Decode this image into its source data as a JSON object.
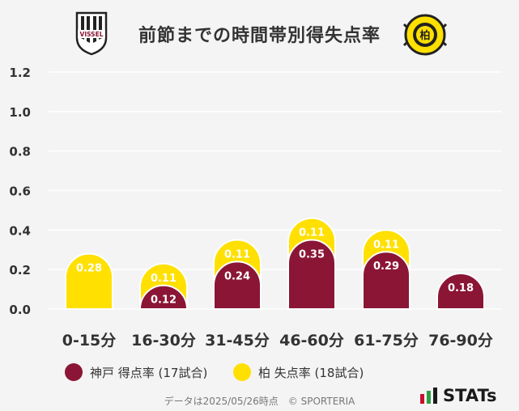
{
  "title": "前節までの時間帯別得失点率",
  "logos": {
    "left": {
      "text": "VISSEL",
      "icon": "vissel-kobe-crest-icon"
    },
    "right": {
      "text": "KASHIWA REYSOL",
      "icon": "kashiwa-reysol-crest-icon"
    }
  },
  "colors": {
    "kobe": "#8b1535",
    "kashiwa": "#ffe000",
    "grid": "#ffffff",
    "text": "#333333"
  },
  "chart_data": {
    "type": "bar",
    "title": "前節までの時間帯別得失点率",
    "categories": [
      "0-15分",
      "16-30分",
      "31-45分",
      "46-60分",
      "61-75分",
      "76-90分"
    ],
    "series": [
      {
        "name": "神戸 得点率 (17試合)",
        "values": [
          0,
          0.12,
          0.24,
          0.35,
          0.29,
          0.18
        ]
      },
      {
        "name": "柏 失点率 (18試合)",
        "values": [
          0.28,
          0.11,
          0.11,
          0.11,
          0.11,
          0
        ]
      }
    ],
    "labels": [
      [
        "",
        "0.12",
        "0.24",
        "0.35",
        "0.29",
        "0.18"
      ],
      [
        "0.28",
        "0.11",
        "0.11",
        "0.11",
        "0.11",
        ""
      ]
    ],
    "stacked": true,
    "ylim": [
      0,
      1.2
    ],
    "yticks": [
      "0.0",
      "0.2",
      "0.4",
      "0.6",
      "0.8",
      "1.0",
      "1.2"
    ],
    "grid": true,
    "legend_position": "bottom"
  },
  "legend": {
    "kobe_label": "神戸 得点率 (17試合)",
    "kashiwa_label": "柏 失点率 (18試合)"
  },
  "footer": {
    "text": "データは2025/05/26時点　© SPORTERIA"
  },
  "brand": {
    "text": "STATs",
    "icon": "stats-bars-icon"
  }
}
